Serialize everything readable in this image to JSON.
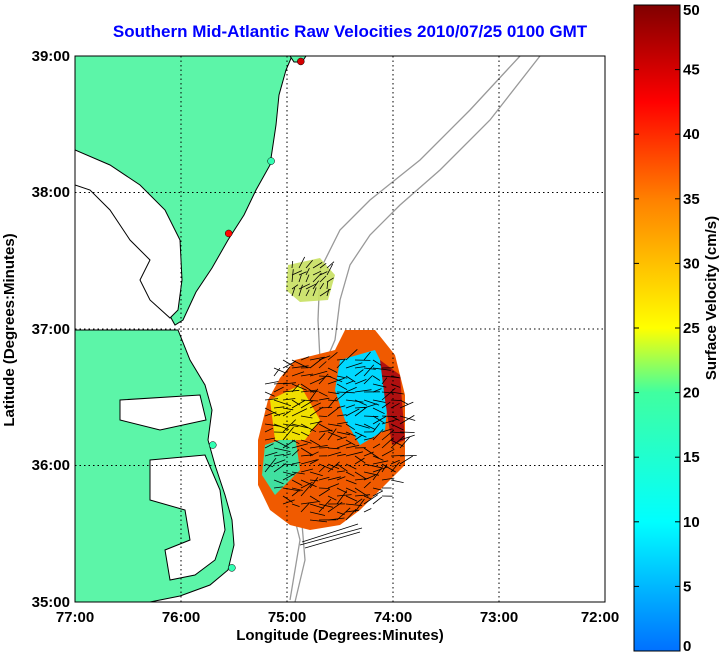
{
  "title": "Southern Mid-Atlantic Raw Velocities 2010/07/25 0100 GMT",
  "x_axis": {
    "label": "Longitude (Degrees:Minutes)",
    "ticks": [
      "77:00",
      "76:00",
      "75:00",
      "74:00",
      "73:00",
      "72:00"
    ]
  },
  "y_axis": {
    "label": "Latitude (Degrees:Minutes)",
    "ticks": [
      "39:00",
      "38:00",
      "37:00",
      "36:00",
      "35:00"
    ]
  },
  "colorbar": {
    "label": "Surface Velocity (cm/s)",
    "ticks": [
      "50",
      "45",
      "40",
      "35",
      "30",
      "25",
      "20",
      "15",
      "10",
      "5",
      "0"
    ],
    "min": 0,
    "max": 50
  },
  "map": {
    "extent_lon": [
      -77,
      -72
    ],
    "extent_lat": [
      35,
      39
    ],
    "grid": true,
    "land_color": "#5cf5a8",
    "stations": [
      {
        "lon": -74.87,
        "lat": 38.96,
        "speed": 45
      },
      {
        "lon": -75.15,
        "lat": 38.23,
        "speed": 18
      },
      {
        "lon": -75.55,
        "lat": 37.7,
        "speed": 42
      },
      {
        "lon": -75.7,
        "lat": 36.15,
        "speed": 18
      },
      {
        "lon": -75.52,
        "lat": 35.25,
        "speed": 18
      }
    ]
  }
}
